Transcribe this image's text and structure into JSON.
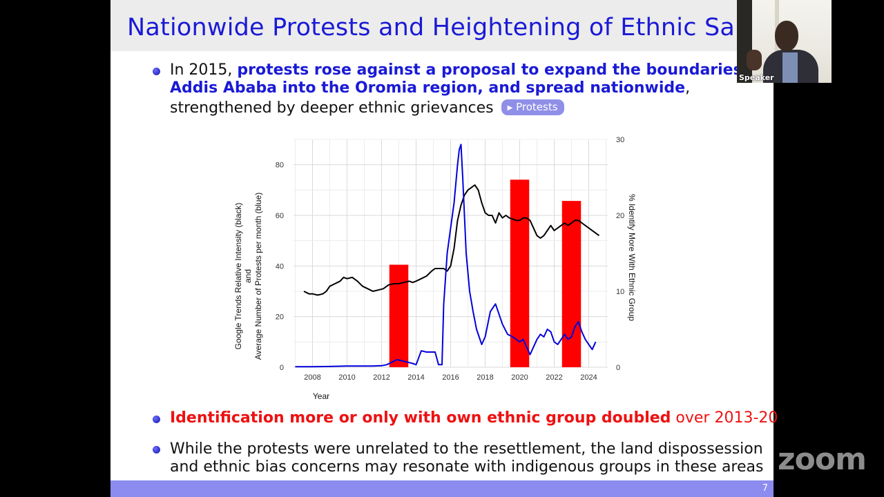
{
  "slide": {
    "title": "Nationwide Protests and Heightening of Ethnic Salience",
    "bullet1": {
      "lead": "In 2015,",
      "bold_line1": "protests rose against a proposal to expand the boundaries o",
      "bold_line2": "Addis Ababa into the Oromia region, and spread nationwide",
      "tail_line2": ",",
      "line3": "strengthened by deeper ethnic grievances",
      "button_label": "Protests"
    },
    "bullet2": {
      "bold": "Identification more or only with own ethnic group doubled",
      "rest": "over 2013-20"
    },
    "bullet3": {
      "line1": "While the protests were unrelated to the resettlement, the land dispossession",
      "line2": "and ethnic bias concerns may resonate with indigenous groups in these areas"
    },
    "page_number": "7",
    "colors": {
      "title": "#1a1ad6",
      "footer": "#8c8cf0",
      "highlight_red": "#ee1111"
    }
  },
  "webcam": {
    "label": "Speaker"
  },
  "watermark": "zoom",
  "chart_data": {
    "type": "line",
    "xlabel": "Year",
    "ylabel_line1": "Google Trends Relative Intensity (black)",
    "ylabel_line2": "and",
    "ylabel_line3": "Average Number of Protests per month (blue)",
    "ylabel_right": "% Identify More With Ethnic Group",
    "xlim": [
      2006.9,
      2025.1
    ],
    "ylim": [
      0,
      90
    ],
    "ylim_right": [
      0,
      30
    ],
    "x_ticks": [
      2008,
      2010,
      2012,
      2014,
      2016,
      2018,
      2020,
      2022,
      2024
    ],
    "y_ticks": [
      0,
      20,
      40,
      60,
      80
    ],
    "y_ticks_right": [
      0,
      10,
      20,
      30
    ],
    "grid": true,
    "bars": {
      "name": "% Identify More With Ethnic Group",
      "color": "#ff0000",
      "axis": "right",
      "width_years": 1.1,
      "points": [
        {
          "x": 2013.0,
          "value": 13.5
        },
        {
          "x": 2020.0,
          "value": 24.7
        },
        {
          "x": 2023.0,
          "value": 21.9
        }
      ]
    },
    "series": [
      {
        "name": "Google Trends Relative Intensity (black)",
        "color": "#000000",
        "x": [
          2007.5,
          2007.8,
          2008.0,
          2008.3,
          2008.6,
          2008.8,
          2009.0,
          2009.3,
          2009.6,
          2009.8,
          2010.0,
          2010.3,
          2010.6,
          2010.9,
          2011.2,
          2011.5,
          2011.8,
          2012.1,
          2012.4,
          2012.7,
          2013.0,
          2013.3,
          2013.6,
          2013.8,
          2014.0,
          2014.3,
          2014.6,
          2014.9,
          2015.1,
          2015.4,
          2015.6,
          2015.8,
          2016.0,
          2016.2,
          2016.4,
          2016.6,
          2016.8,
          2017.0,
          2017.2,
          2017.4,
          2017.6,
          2017.8,
          2018.0,
          2018.2,
          2018.4,
          2018.6,
          2018.8,
          2019.0,
          2019.2,
          2019.4,
          2019.6,
          2019.8,
          2020.0,
          2020.2,
          2020.4,
          2020.6,
          2020.8,
          2021.0,
          2021.2,
          2021.4,
          2021.6,
          2021.8,
          2022.0,
          2022.2,
          2022.4,
          2022.6,
          2022.8,
          2023.0,
          2023.2,
          2023.4,
          2023.6,
          2023.8,
          2024.0,
          2024.3,
          2024.6
        ],
        "values": [
          30,
          29,
          29,
          28.5,
          29,
          30,
          32,
          33,
          34,
          35.5,
          35,
          35.5,
          34,
          32,
          31,
          30,
          30.5,
          31,
          32.5,
          33,
          33,
          33.5,
          34,
          33.5,
          34,
          35,
          36,
          38,
          39,
          39,
          39,
          38,
          40,
          47,
          58,
          64,
          68,
          70,
          71,
          72,
          70,
          65,
          61,
          60,
          60,
          57,
          61,
          59,
          60,
          59,
          58.5,
          58,
          58,
          59,
          59,
          58,
          55,
          52,
          51,
          52,
          54,
          56,
          54,
          55,
          56,
          57,
          56,
          57,
          58,
          58,
          57,
          56,
          55,
          53.5,
          52
        ]
      },
      {
        "name": "Average Number of Protests per month (blue)",
        "color": "#0000dd",
        "x": [
          2007.0,
          2008.0,
          2009.0,
          2010.0,
          2011.0,
          2011.5,
          2012.0,
          2012.3,
          2012.6,
          2012.9,
          2013.2,
          2013.5,
          2013.8,
          2014.0,
          2014.3,
          2014.6,
          2014.9,
          2015.1,
          2015.3,
          2015.5,
          2015.6,
          2015.8,
          2016.0,
          2016.2,
          2016.4,
          2016.5,
          2016.6,
          2016.7,
          2016.9,
          2017.1,
          2017.3,
          2017.5,
          2017.8,
          2018.0,
          2018.3,
          2018.6,
          2019.0,
          2019.3,
          2019.6,
          2019.8,
          2020.0,
          2020.2,
          2020.4,
          2020.6,
          2020.8,
          2021.0,
          2021.2,
          2021.4,
          2021.6,
          2021.8,
          2022.0,
          2022.2,
          2022.4,
          2022.6,
          2022.8,
          2023.0,
          2023.2,
          2023.4,
          2023.6,
          2023.8,
          2024.0,
          2024.2,
          2024.4
        ],
        "values": [
          0.2,
          0.2,
          0.3,
          0.5,
          0.5,
          0.5,
          0.6,
          1,
          2,
          3,
          2.5,
          2,
          1.5,
          1,
          6.5,
          6,
          6,
          6,
          1,
          1,
          25,
          45,
          55,
          65,
          80,
          86,
          88,
          75,
          45,
          30,
          22,
          15,
          9,
          12,
          22,
          25,
          17,
          13,
          12,
          11,
          10,
          11,
          8,
          5,
          8,
          11,
          13,
          12,
          15,
          14,
          10,
          9,
          11,
          13,
          11,
          12,
          16,
          18,
          14,
          11,
          9,
          7,
          10
        ]
      }
    ]
  }
}
